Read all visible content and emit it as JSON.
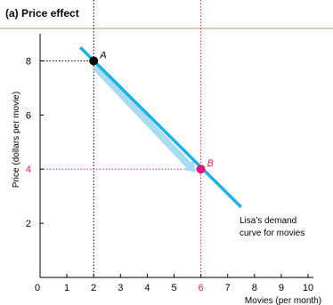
{
  "panel": {
    "title": "(a) Price effect"
  },
  "chart_data": {
    "type": "line",
    "xlabel": "Movies (per month)",
    "ylabel": "Price (dollars per movie)",
    "xlim": [
      0,
      10
    ],
    "ylim": [
      0,
      9
    ],
    "x_ticks": [
      "0",
      "1",
      "2",
      "3",
      "4",
      "5",
      "6",
      "7",
      "8",
      "9",
      "10"
    ],
    "y_ticks": [
      "2",
      "4",
      "6",
      "8"
    ],
    "highlighted_x_tick": "6",
    "highlighted_y_tick": "4",
    "series": [
      {
        "name": "Lisa's demand curve for movies",
        "x": [
          1.5,
          7.5
        ],
        "y": [
          8.5,
          2.6
        ]
      }
    ],
    "series_label": [
      "Lisa's demand",
      "curve for movies"
    ],
    "points": [
      {
        "label": "A",
        "x": 2,
        "y": 8
      },
      {
        "label": "B",
        "x": 6,
        "y": 4
      }
    ],
    "colors": {
      "curve": "#1bb3e6",
      "arrow": "#a9dcf3",
      "point_a": "#000000",
      "point_b": "#e4177a",
      "highlight": "#e4177a",
      "axis": "#000000"
    }
  }
}
